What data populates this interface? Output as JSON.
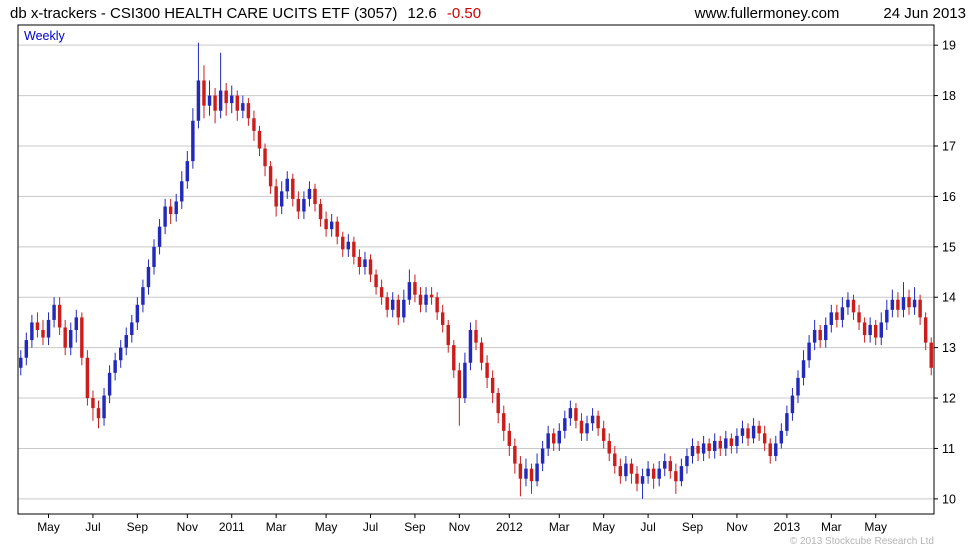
{
  "header": {
    "title": "db x-trackers - CSI300 HEALTH CARE UCITS ETF (3057)",
    "last_price": "12.6",
    "change": "-0.50",
    "website": "www.fullermoney.com",
    "date": "24 Jun 2013"
  },
  "chart_label": "Weekly",
  "copyright": "© 2013 Stockcube Research Ltd",
  "chart_data": {
    "type": "candlestick",
    "title": "db x-trackers - CSI300 HEALTH CARE UCITS ETF (3057)",
    "interval": "Weekly",
    "xlabel": "",
    "ylabel": "",
    "ylim": [
      9.7,
      19.4
    ],
    "y_gridlines": [
      10,
      11,
      12,
      13,
      14,
      15,
      16,
      17,
      18,
      19
    ],
    "grid": true,
    "legend_position": "none",
    "colors": {
      "up": "#2229bb",
      "down": "#cc1d1d",
      "grid": "#c9c9c9",
      "frame": "#000000",
      "interval_label": "#0000cc",
      "change_negative": "#cc0000",
      "copyright": "#b4b4b4"
    },
    "x_ticks": [
      {
        "label": "May",
        "week": 5
      },
      {
        "label": "Jul",
        "week": 13
      },
      {
        "label": "Sep",
        "week": 21
      },
      {
        "label": "Nov",
        "week": 30
      },
      {
        "label": "2011",
        "week": 38
      },
      {
        "label": "Mar",
        "week": 46
      },
      {
        "label": "May",
        "week": 55
      },
      {
        "label": "Jul",
        "week": 63
      },
      {
        "label": "Sep",
        "week": 71
      },
      {
        "label": "Nov",
        "week": 79
      },
      {
        "label": "2012",
        "week": 88
      },
      {
        "label": "Mar",
        "week": 97
      },
      {
        "label": "May",
        "week": 105
      },
      {
        "label": "Jul",
        "week": 113
      },
      {
        "label": "Sep",
        "week": 121
      },
      {
        "label": "Nov",
        "week": 129
      },
      {
        "label": "2013",
        "week": 138
      },
      {
        "label": "Mar",
        "week": 146
      },
      {
        "label": "May",
        "week": 154
      }
    ],
    "candles_format": [
      "open",
      "high",
      "low",
      "close"
    ],
    "candles": [
      [
        12.6,
        12.95,
        12.45,
        12.8
      ],
      [
        12.8,
        13.3,
        12.65,
        13.15
      ],
      [
        13.15,
        13.65,
        13.0,
        13.5
      ],
      [
        13.5,
        13.7,
        13.2,
        13.35
      ],
      [
        13.35,
        13.55,
        13.05,
        13.2
      ],
      [
        13.2,
        13.7,
        13.05,
        13.55
      ],
      [
        13.55,
        14.0,
        13.4,
        13.85
      ],
      [
        13.85,
        14.0,
        13.25,
        13.4
      ],
      [
        13.4,
        13.55,
        12.85,
        13.0
      ],
      [
        13.0,
        13.5,
        12.85,
        13.35
      ],
      [
        13.35,
        13.75,
        13.1,
        13.6
      ],
      [
        13.6,
        13.7,
        12.65,
        12.8
      ],
      [
        12.8,
        12.95,
        11.85,
        12.0
      ],
      [
        12.0,
        12.15,
        11.55,
        11.8
      ],
      [
        11.8,
        11.95,
        11.4,
        11.6
      ],
      [
        11.6,
        12.2,
        11.45,
        12.05
      ],
      [
        12.05,
        12.65,
        11.9,
        12.5
      ],
      [
        12.5,
        12.9,
        12.35,
        12.75
      ],
      [
        12.75,
        13.15,
        12.6,
        13.0
      ],
      [
        13.0,
        13.4,
        12.85,
        13.25
      ],
      [
        13.25,
        13.65,
        13.1,
        13.5
      ],
      [
        13.5,
        14.0,
        13.35,
        13.85
      ],
      [
        13.85,
        14.35,
        13.7,
        14.2
      ],
      [
        14.2,
        14.75,
        14.05,
        14.6
      ],
      [
        14.6,
        15.15,
        14.45,
        15.0
      ],
      [
        15.0,
        15.55,
        14.85,
        15.4
      ],
      [
        15.4,
        15.95,
        15.25,
        15.8
      ],
      [
        15.8,
        15.95,
        15.45,
        15.65
      ],
      [
        15.65,
        16.05,
        15.5,
        15.9
      ],
      [
        15.9,
        16.5,
        15.75,
        16.3
      ],
      [
        16.3,
        16.9,
        16.15,
        16.7
      ],
      [
        16.7,
        17.75,
        16.55,
        17.5
      ],
      [
        17.5,
        19.05,
        17.35,
        18.3
      ],
      [
        18.3,
        18.6,
        17.55,
        17.8
      ],
      [
        17.8,
        18.3,
        17.6,
        18.0
      ],
      [
        18.0,
        18.15,
        17.45,
        17.7
      ],
      [
        17.7,
        18.85,
        17.55,
        18.1
      ],
      [
        18.1,
        18.25,
        17.6,
        17.85
      ],
      [
        17.85,
        18.2,
        17.65,
        18.0
      ],
      [
        18.0,
        18.1,
        17.5,
        17.7
      ],
      [
        17.7,
        18.0,
        17.55,
        17.85
      ],
      [
        17.85,
        17.95,
        17.4,
        17.55
      ],
      [
        17.55,
        17.7,
        17.1,
        17.3
      ],
      [
        17.3,
        17.4,
        16.8,
        16.95
      ],
      [
        16.95,
        17.05,
        16.4,
        16.6
      ],
      [
        16.6,
        16.7,
        16.05,
        16.2
      ],
      [
        16.2,
        16.35,
        15.6,
        15.8
      ],
      [
        15.8,
        16.3,
        15.65,
        16.1
      ],
      [
        16.1,
        16.5,
        15.95,
        16.35
      ],
      [
        16.35,
        16.45,
        15.8,
        15.95
      ],
      [
        15.95,
        16.1,
        15.55,
        15.7
      ],
      [
        15.7,
        16.1,
        15.55,
        15.95
      ],
      [
        15.95,
        16.3,
        15.8,
        16.15
      ],
      [
        16.15,
        16.25,
        15.7,
        15.85
      ],
      [
        15.85,
        15.95,
        15.4,
        15.55
      ],
      [
        15.55,
        15.7,
        15.2,
        15.35
      ],
      [
        15.35,
        15.65,
        15.2,
        15.5
      ],
      [
        15.5,
        15.6,
        15.05,
        15.2
      ],
      [
        15.2,
        15.3,
        14.8,
        14.95
      ],
      [
        14.95,
        15.25,
        14.8,
        15.1
      ],
      [
        15.1,
        15.2,
        14.65,
        14.8
      ],
      [
        14.8,
        14.95,
        14.45,
        14.6
      ],
      [
        14.6,
        14.9,
        14.45,
        14.75
      ],
      [
        14.75,
        14.85,
        14.3,
        14.45
      ],
      [
        14.45,
        14.55,
        14.05,
        14.2
      ],
      [
        14.2,
        14.35,
        13.85,
        14.0
      ],
      [
        14.0,
        14.1,
        13.6,
        13.75
      ],
      [
        13.75,
        14.1,
        13.6,
        13.95
      ],
      [
        13.95,
        14.05,
        13.45,
        13.6
      ],
      [
        13.6,
        14.15,
        13.5,
        13.95
      ],
      [
        13.95,
        14.55,
        13.85,
        14.3
      ],
      [
        14.3,
        14.45,
        13.9,
        14.05
      ],
      [
        14.05,
        14.2,
        13.7,
        13.85
      ],
      [
        13.85,
        14.2,
        13.7,
        14.05
      ],
      [
        14.05,
        14.2,
        13.85,
        14.0
      ],
      [
        14.0,
        14.1,
        13.55,
        13.7
      ],
      [
        13.7,
        13.85,
        13.3,
        13.45
      ],
      [
        13.45,
        13.55,
        12.9,
        13.05
      ],
      [
        13.05,
        13.15,
        12.4,
        12.55
      ],
      [
        12.55,
        12.7,
        11.45,
        12.0
      ],
      [
        12.0,
        12.9,
        11.9,
        12.7
      ],
      [
        12.7,
        13.5,
        12.55,
        13.35
      ],
      [
        13.35,
        13.55,
        12.95,
        13.1
      ],
      [
        13.1,
        13.2,
        12.55,
        12.7
      ],
      [
        12.7,
        12.85,
        12.2,
        12.4
      ],
      [
        12.4,
        12.55,
        11.9,
        12.1
      ],
      [
        12.1,
        12.2,
        11.5,
        11.7
      ],
      [
        11.7,
        11.85,
        11.15,
        11.35
      ],
      [
        11.35,
        11.5,
        10.85,
        11.05
      ],
      [
        11.05,
        11.2,
        10.5,
        10.7
      ],
      [
        10.7,
        10.85,
        10.05,
        10.4
      ],
      [
        10.4,
        10.8,
        10.25,
        10.6
      ],
      [
        10.6,
        10.7,
        10.1,
        10.35
      ],
      [
        10.35,
        10.9,
        10.25,
        10.7
      ],
      [
        10.7,
        11.15,
        10.55,
        11.0
      ],
      [
        11.0,
        11.45,
        10.85,
        11.3
      ],
      [
        11.3,
        11.4,
        10.95,
        11.1
      ],
      [
        11.1,
        11.5,
        10.95,
        11.35
      ],
      [
        11.35,
        11.75,
        11.2,
        11.6
      ],
      [
        11.6,
        11.95,
        11.45,
        11.8
      ],
      [
        11.8,
        11.9,
        11.4,
        11.55
      ],
      [
        11.55,
        11.7,
        11.15,
        11.3
      ],
      [
        11.3,
        11.65,
        11.15,
        11.5
      ],
      [
        11.5,
        11.8,
        11.35,
        11.65
      ],
      [
        11.65,
        11.75,
        11.25,
        11.4
      ],
      [
        11.4,
        11.55,
        11.0,
        11.15
      ],
      [
        11.15,
        11.3,
        10.75,
        10.9
      ],
      [
        10.9,
        11.05,
        10.5,
        10.65
      ],
      [
        10.65,
        10.8,
        10.3,
        10.45
      ],
      [
        10.45,
        10.85,
        10.35,
        10.7
      ],
      [
        10.7,
        10.8,
        10.3,
        10.5
      ],
      [
        10.5,
        10.65,
        10.15,
        10.3
      ],
      [
        10.3,
        10.6,
        10.0,
        10.45
      ],
      [
        10.45,
        10.75,
        10.3,
        10.6
      ],
      [
        10.6,
        10.7,
        10.2,
        10.4
      ],
      [
        10.4,
        10.75,
        10.25,
        10.6
      ],
      [
        10.6,
        10.9,
        10.45,
        10.75
      ],
      [
        10.75,
        10.85,
        10.4,
        10.55
      ],
      [
        10.55,
        10.7,
        10.1,
        10.35
      ],
      [
        10.35,
        10.8,
        10.25,
        10.65
      ],
      [
        10.65,
        11.0,
        10.5,
        10.85
      ],
      [
        10.85,
        11.2,
        10.7,
        11.05
      ],
      [
        11.05,
        11.15,
        10.75,
        10.9
      ],
      [
        10.9,
        11.25,
        10.75,
        11.1
      ],
      [
        11.1,
        11.2,
        10.8,
        10.95
      ],
      [
        10.95,
        11.3,
        10.8,
        11.15
      ],
      [
        11.15,
        11.25,
        10.85,
        11.0
      ],
      [
        11.0,
        11.35,
        10.85,
        11.2
      ],
      [
        11.2,
        11.3,
        10.9,
        11.05
      ],
      [
        11.05,
        11.4,
        10.9,
        11.25
      ],
      [
        11.25,
        11.55,
        11.1,
        11.4
      ],
      [
        11.4,
        11.5,
        11.05,
        11.2
      ],
      [
        11.2,
        11.6,
        11.1,
        11.45
      ],
      [
        11.45,
        11.55,
        11.15,
        11.3
      ],
      [
        11.3,
        11.45,
        10.95,
        11.1
      ],
      [
        11.1,
        11.2,
        10.7,
        10.85
      ],
      [
        10.85,
        11.25,
        10.75,
        11.1
      ],
      [
        11.1,
        11.5,
        11.0,
        11.35
      ],
      [
        11.35,
        11.85,
        11.25,
        11.7
      ],
      [
        11.7,
        12.2,
        11.55,
        12.05
      ],
      [
        12.05,
        12.55,
        11.9,
        12.4
      ],
      [
        12.4,
        12.95,
        12.25,
        12.75
      ],
      [
        12.75,
        13.25,
        12.6,
        13.1
      ],
      [
        13.1,
        13.55,
        12.95,
        13.35
      ],
      [
        13.35,
        13.45,
        13.0,
        13.15
      ],
      [
        13.15,
        13.6,
        13.0,
        13.45
      ],
      [
        13.45,
        13.85,
        13.3,
        13.7
      ],
      [
        13.7,
        13.85,
        13.4,
        13.55
      ],
      [
        13.55,
        14.0,
        13.4,
        13.8
      ],
      [
        13.8,
        14.1,
        13.65,
        13.95
      ],
      [
        13.95,
        14.05,
        13.55,
        13.7
      ],
      [
        13.7,
        13.85,
        13.35,
        13.5
      ],
      [
        13.5,
        13.6,
        13.1,
        13.25
      ],
      [
        13.25,
        13.6,
        13.1,
        13.45
      ],
      [
        13.45,
        13.55,
        13.05,
        13.2
      ],
      [
        13.2,
        13.7,
        13.05,
        13.5
      ],
      [
        13.5,
        13.95,
        13.35,
        13.75
      ],
      [
        13.75,
        14.15,
        13.6,
        13.95
      ],
      [
        13.95,
        14.1,
        13.6,
        13.75
      ],
      [
        13.75,
        14.3,
        13.6,
        14.0
      ],
      [
        14.0,
        14.15,
        13.65,
        13.8
      ],
      [
        13.8,
        14.2,
        13.65,
        13.95
      ],
      [
        13.95,
        14.05,
        13.45,
        13.6
      ],
      [
        13.6,
        13.7,
        12.95,
        13.1
      ],
      [
        13.1,
        13.2,
        12.45,
        12.6
      ]
    ]
  }
}
